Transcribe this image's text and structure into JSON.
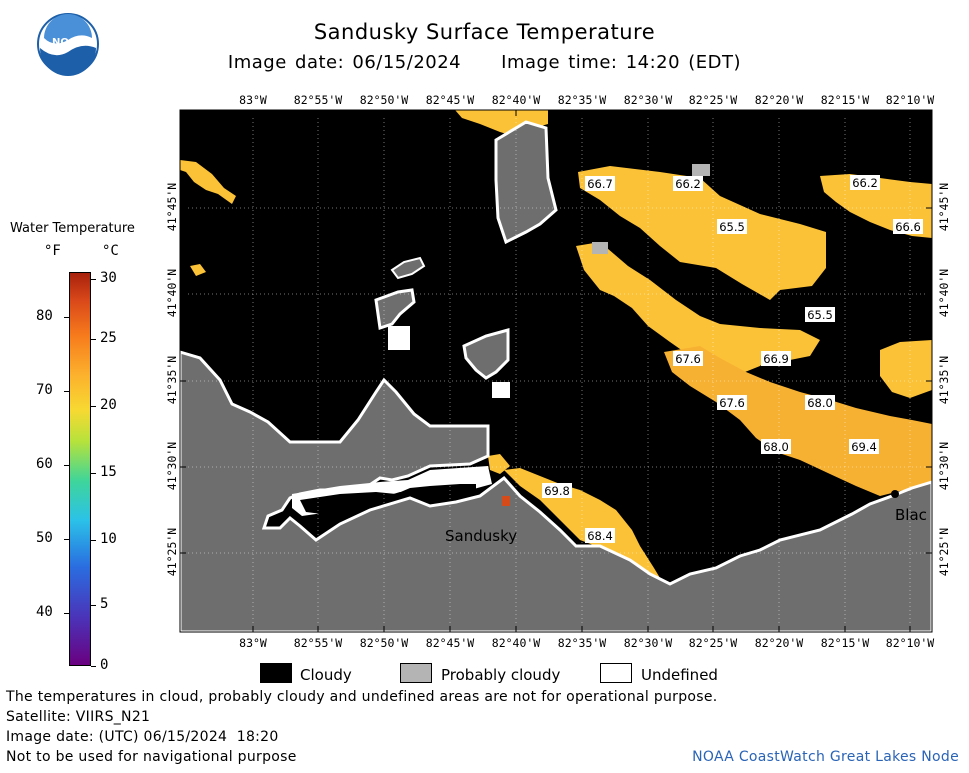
{
  "header": {
    "title": "Sandusky Surface Temperature",
    "image_date": "Image date: 06/15/2024",
    "image_time": "Image time: 14:20 (EDT)"
  },
  "logo": {
    "text": "NOAA"
  },
  "colorbar": {
    "title": "Water Temperature",
    "unit_f": "°F",
    "unit_c": "°C",
    "f_ticks": [
      "40",
      "50",
      "60",
      "70",
      "80"
    ],
    "c_ticks": [
      "0",
      "5",
      "10",
      "15",
      "20",
      "25",
      "30"
    ]
  },
  "map": {
    "lon_ticks": [
      "83°W",
      "82°55'W",
      "82°50'W",
      "82°45'W",
      "82°40'W",
      "82°35'W",
      "82°30'W",
      "82°25'W",
      "82°20'W",
      "82°15'W",
      "82°10'W"
    ],
    "lat_ticks": [
      "41°45'N",
      "41°40'N",
      "41°35'N",
      "41°30'N",
      "41°25'N"
    ],
    "city_labels": [
      "Sandusky",
      "Blac"
    ],
    "temp_labels": [
      "66.7",
      "66.2",
      "65.5",
      "66.2",
      "66.6",
      "65.5",
      "67.6",
      "66.9",
      "67.6",
      "68.0",
      "68.0",
      "69.4",
      "69.8",
      "68.4"
    ],
    "colors": {
      "cloudy": "#000000",
      "land": "#6e6e6e",
      "probably_cloudy": "#b4b4b4",
      "undefined": "#ffffff",
      "water_warm": "#fcc237",
      "water_warmer": "#f7b132"
    }
  },
  "legend": {
    "cloudy": "Cloudy",
    "probably_cloudy": "Probably cloudy",
    "undefined": "Undefined"
  },
  "footer": {
    "disclaimer": "The temperatures in cloud, probably cloudy and undefined areas are not for operational purpose.",
    "satellite": "Satellite: VIIRS_N21",
    "utc_date": "Image date: (UTC) 06/15/2024  18:20",
    "navigation": "Not to be used for navigational purpose",
    "credit": "NOAA CoastWatch Great Lakes Node"
  }
}
